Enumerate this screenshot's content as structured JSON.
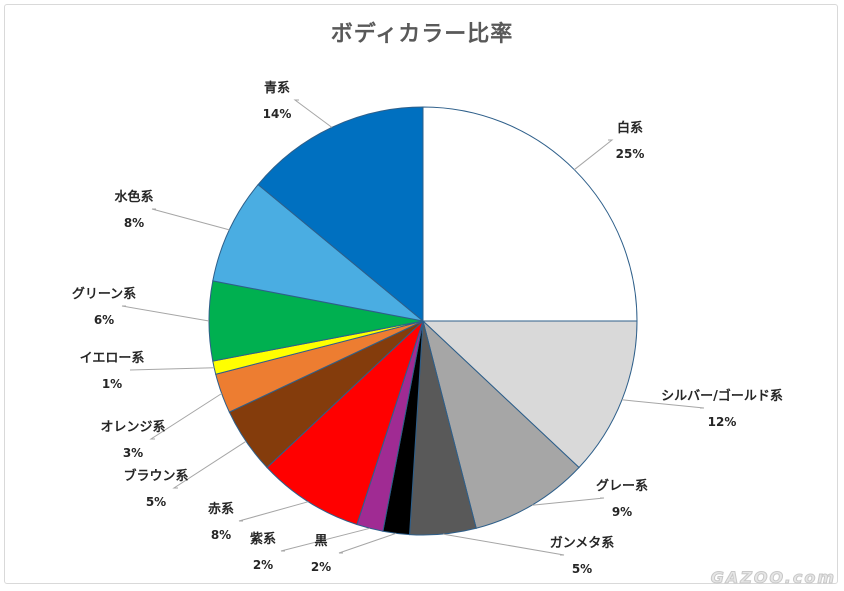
{
  "chart_data": {
    "type": "pie",
    "title": "ボディカラー比率",
    "slices": [
      {
        "label": "白系",
        "value": 25,
        "pct_label": "25%",
        "color": "#ffffff"
      },
      {
        "label": "シルバー/ゴールド系",
        "value": 12,
        "pct_label": "12%",
        "color": "#d9d9d9"
      },
      {
        "label": "グレー系",
        "value": 9,
        "pct_label": "9%",
        "color": "#a6a6a6"
      },
      {
        "label": "ガンメタ系",
        "value": 5,
        "pct_label": "5%",
        "color": "#595959"
      },
      {
        "label": "黒",
        "value": 2,
        "pct_label": "2%",
        "color": "#000000"
      },
      {
        "label": "紫系",
        "value": 2,
        "pct_label": "2%",
        "color": "#a02b93"
      },
      {
        "label": "赤系",
        "value": 8,
        "pct_label": "8%",
        "color": "#ff0000"
      },
      {
        "label": "ブラウン系",
        "value": 5,
        "pct_label": "5%",
        "color": "#843c0c"
      },
      {
        "label": "オレンジ系",
        "value": 3,
        "pct_label": "3%",
        "color": "#ed7d31"
      },
      {
        "label": "イエロー系",
        "value": 1,
        "pct_label": "1%",
        "color": "#ffff00"
      },
      {
        "label": "グリーン系",
        "value": 6,
        "pct_label": "6%",
        "color": "#00b050"
      },
      {
        "label": "水色系",
        "value": 8,
        "pct_label": "8%",
        "color": "#4aade2"
      },
      {
        "label": "青系",
        "value": 14,
        "pct_label": "14%",
        "color": "#0070c0"
      }
    ],
    "slice_border_color": "#2e5f8a"
  },
  "watermark": "GAZOO.com"
}
